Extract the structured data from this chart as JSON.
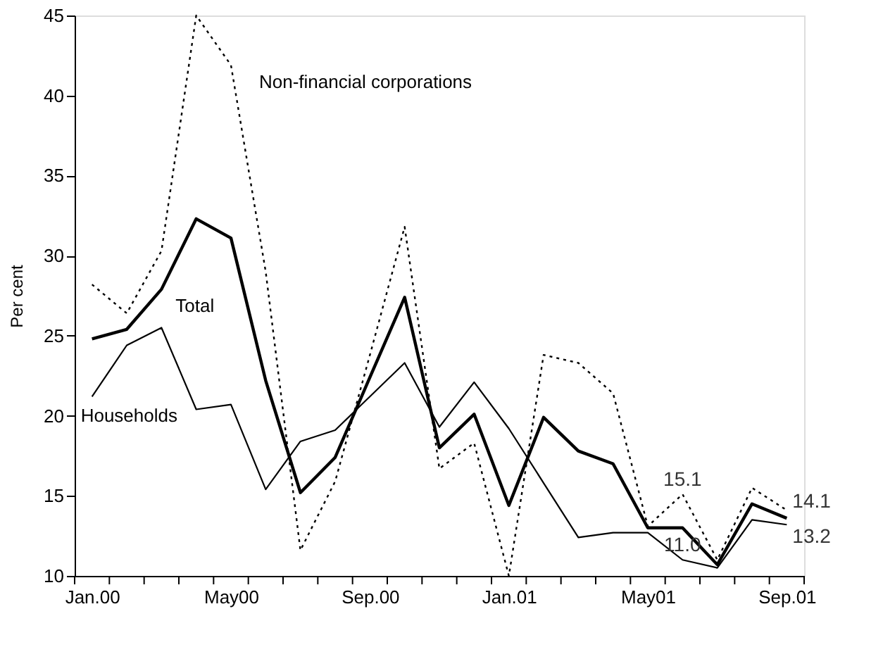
{
  "chart_data": {
    "type": "line",
    "ylabel": "Per cent",
    "categories": [
      "Jan.00",
      null,
      null,
      null,
      "May00",
      null,
      null,
      null,
      "Sep.00",
      null,
      null,
      null,
      "Jan.01",
      null,
      null,
      null,
      "May01",
      null,
      null,
      null,
      "Sep.01"
    ],
    "series": [
      {
        "name": "Non-financial corporations",
        "color": "#000000",
        "line_style": "dotted",
        "values": [
          28.2,
          26.4,
          30.3,
          45.0,
          41.9,
          29.0,
          11.6,
          15.9,
          23.8,
          31.8,
          16.7,
          18.3,
          10.0,
          23.8,
          23.3,
          21.4,
          13.1,
          15.1,
          11.0,
          15.5,
          14.1
        ],
        "value_labels": [
          null,
          null,
          null,
          null,
          null,
          null,
          null,
          null,
          null,
          null,
          null,
          null,
          null,
          null,
          null,
          null,
          null,
          "15.1",
          null,
          null,
          "14.1"
        ]
      },
      {
        "name": "Total",
        "color": "#000000",
        "line_style": "solid",
        "values": [
          24.8,
          25.4,
          27.9,
          32.3,
          31.1,
          22.2,
          15.2,
          17.4,
          22.4,
          27.4,
          18.0,
          20.1,
          14.4,
          19.9,
          17.8,
          17.0,
          13.0,
          13.0,
          10.7,
          14.5,
          13.6
        ]
      },
      {
        "name": "Households",
        "color": "#000000",
        "line_style": "solid",
        "values": [
          21.2,
          24.4,
          25.5,
          20.4,
          20.7,
          15.4,
          18.4,
          19.1,
          21.2,
          23.3,
          19.3,
          22.1,
          19.2,
          15.8,
          12.4,
          12.7,
          12.7,
          11.0,
          10.5,
          13.5,
          13.2
        ],
        "value_labels": [
          null,
          null,
          null,
          null,
          null,
          null,
          null,
          null,
          null,
          null,
          null,
          null,
          null,
          null,
          null,
          null,
          null,
          "11.0",
          null,
          null,
          "13.2"
        ]
      }
    ],
    "ylim": [
      10,
      45
    ],
    "yticks": [
      10,
      15,
      20,
      25,
      30,
      35,
      40,
      45
    ],
    "grid": false,
    "marker": "none"
  }
}
